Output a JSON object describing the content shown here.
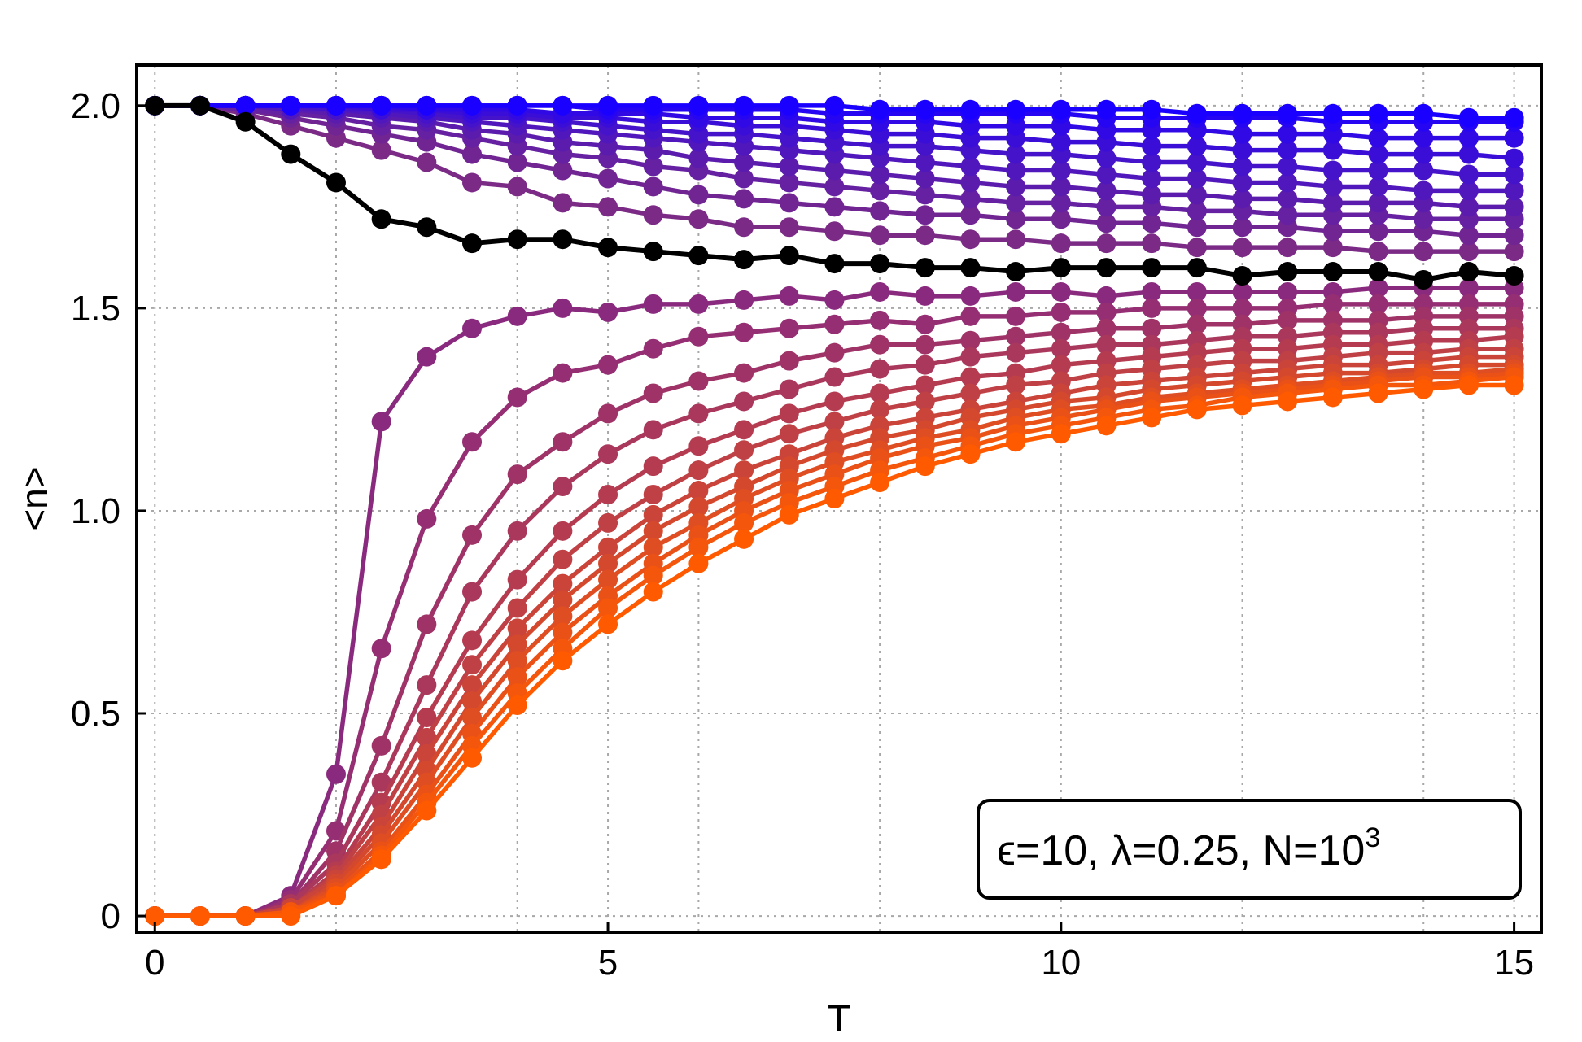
{
  "chart_data": {
    "type": "line",
    "xlabel": "T",
    "ylabel": "<n>",
    "xlim": [
      -0.2,
      15.3
    ],
    "ylim": [
      -0.04,
      2.1
    ],
    "xticks": [
      0,
      5,
      10,
      15
    ],
    "xtick_labels": [
      "0",
      "5",
      "10",
      "15"
    ],
    "yticks": [
      0,
      0.5,
      1.0,
      1.5,
      2.0
    ],
    "ytick_labels": [
      "0",
      "0.5",
      "1.0",
      "1.5",
      "2.0"
    ],
    "grid": true,
    "grid_x": [
      0,
      2,
      4,
      5,
      6,
      8,
      10,
      12,
      14,
      15
    ],
    "grid_y": [
      0,
      0.5,
      1.0,
      1.5,
      2.0
    ],
    "legend_box": {
      "text": "ϵ=10, λ=0.25, N=10",
      "superscript": "3",
      "placement": "bottom-right"
    },
    "colors": {
      "top_family_start": "#7b2a86",
      "top_family_end": "#1a00ff",
      "bottom_family_start": "#8a2a7e",
      "bottom_family_end": "#ff5a00",
      "highlight": "#000000"
    },
    "x": [
      0,
      0.5,
      1,
      1.5,
      2,
      2.5,
      3,
      3.5,
      4,
      4.5,
      5,
      5.5,
      6,
      6.5,
      7,
      7.5,
      8,
      8.5,
      9,
      9.5,
      10,
      10.5,
      11,
      11.5,
      12,
      12.5,
      13,
      13.5,
      14,
      14.5,
      15
    ],
    "series": [
      {
        "family": "top",
        "values": [
          2,
          2,
          1.98,
          1.95,
          1.92,
          1.89,
          1.86,
          1.81,
          1.8,
          1.76,
          1.75,
          1.73,
          1.72,
          1.7,
          1.7,
          1.69,
          1.68,
          1.68,
          1.67,
          1.67,
          1.66,
          1.66,
          1.66,
          1.65,
          1.65,
          1.65,
          1.65,
          1.64,
          1.64,
          1.64,
          1.64
        ]
      },
      {
        "family": "top",
        "values": [
          2,
          2,
          1.99,
          1.97,
          1.95,
          1.93,
          1.91,
          1.88,
          1.86,
          1.84,
          1.82,
          1.8,
          1.78,
          1.77,
          1.76,
          1.75,
          1.74,
          1.73,
          1.73,
          1.72,
          1.72,
          1.71,
          1.71,
          1.7,
          1.7,
          1.7,
          1.69,
          1.69,
          1.69,
          1.68,
          1.68
        ]
      },
      {
        "family": "top",
        "values": [
          2,
          2,
          1.99,
          1.98,
          1.97,
          1.95,
          1.94,
          1.92,
          1.9,
          1.88,
          1.87,
          1.85,
          1.84,
          1.82,
          1.81,
          1.8,
          1.79,
          1.78,
          1.77,
          1.76,
          1.76,
          1.75,
          1.75,
          1.74,
          1.74,
          1.73,
          1.73,
          1.73,
          1.72,
          1.72,
          1.72
        ]
      },
      {
        "family": "top",
        "values": [
          2,
          2,
          2,
          1.99,
          1.98,
          1.97,
          1.96,
          1.94,
          1.93,
          1.91,
          1.9,
          1.89,
          1.87,
          1.86,
          1.85,
          1.84,
          1.83,
          1.82,
          1.81,
          1.8,
          1.8,
          1.79,
          1.78,
          1.78,
          1.77,
          1.77,
          1.76,
          1.76,
          1.76,
          1.75,
          1.75
        ]
      },
      {
        "family": "top",
        "values": [
          2,
          2,
          2,
          1.99,
          1.99,
          1.98,
          1.97,
          1.96,
          1.95,
          1.94,
          1.93,
          1.92,
          1.91,
          1.9,
          1.89,
          1.88,
          1.87,
          1.86,
          1.85,
          1.84,
          1.84,
          1.83,
          1.82,
          1.82,
          1.81,
          1.81,
          1.8,
          1.8,
          1.79,
          1.79,
          1.79
        ]
      },
      {
        "family": "top",
        "values": [
          2,
          2,
          2,
          2,
          1.99,
          1.99,
          1.98,
          1.97,
          1.97,
          1.96,
          1.95,
          1.94,
          1.93,
          1.93,
          1.92,
          1.91,
          1.9,
          1.9,
          1.89,
          1.88,
          1.88,
          1.87,
          1.86,
          1.86,
          1.85,
          1.85,
          1.84,
          1.84,
          1.84,
          1.83,
          1.83
        ]
      },
      {
        "family": "top",
        "values": [
          2,
          2,
          2,
          2,
          2,
          1.99,
          1.99,
          1.98,
          1.98,
          1.97,
          1.97,
          1.96,
          1.96,
          1.95,
          1.95,
          1.94,
          1.93,
          1.93,
          1.92,
          1.92,
          1.91,
          1.91,
          1.9,
          1.9,
          1.89,
          1.89,
          1.89,
          1.88,
          1.88,
          1.88,
          1.87
        ]
      },
      {
        "family": "top",
        "values": [
          2,
          2,
          2,
          2,
          2,
          2,
          1.99,
          1.99,
          1.99,
          1.98,
          1.98,
          1.98,
          1.97,
          1.97,
          1.97,
          1.96,
          1.96,
          1.96,
          1.95,
          1.95,
          1.95,
          1.94,
          1.94,
          1.94,
          1.93,
          1.93,
          1.93,
          1.92,
          1.92,
          1.92,
          1.92
        ]
      },
      {
        "family": "top",
        "values": [
          2,
          2,
          2,
          2,
          2,
          2,
          2,
          2,
          2,
          2,
          1.99,
          1.99,
          1.99,
          1.99,
          1.99,
          1.98,
          1.98,
          1.98,
          1.98,
          1.98,
          1.98,
          1.97,
          1.97,
          1.97,
          1.97,
          1.97,
          1.96,
          1.96,
          1.96,
          1.96,
          1.96
        ]
      },
      {
        "family": "top",
        "values": [
          2,
          2,
          2,
          2,
          2,
          2,
          2,
          2,
          2,
          2,
          2,
          2,
          2,
          2,
          2,
          2,
          1.99,
          1.99,
          1.99,
          1.99,
          1.99,
          1.99,
          1.99,
          1.98,
          1.98,
          1.98,
          1.98,
          1.98,
          1.98,
          1.97,
          1.97
        ]
      },
      {
        "family": "bottom",
        "values": [
          0,
          0,
          0,
          0.05,
          0.35,
          1.22,
          1.38,
          1.45,
          1.48,
          1.5,
          1.49,
          1.51,
          1.51,
          1.52,
          1.53,
          1.52,
          1.54,
          1.53,
          1.53,
          1.54,
          1.54,
          1.53,
          1.54,
          1.54,
          1.54,
          1.54,
          1.54,
          1.55,
          1.55,
          1.55,
          1.55
        ]
      },
      {
        "family": "bottom",
        "values": [
          0,
          0,
          0,
          0.04,
          0.21,
          0.66,
          0.98,
          1.17,
          1.28,
          1.34,
          1.36,
          1.4,
          1.43,
          1.44,
          1.45,
          1.46,
          1.47,
          1.46,
          1.48,
          1.48,
          1.49,
          1.49,
          1.5,
          1.5,
          1.5,
          1.5,
          1.51,
          1.51,
          1.51,
          1.51,
          1.51
        ]
      },
      {
        "family": "bottom",
        "values": [
          0,
          0,
          0,
          0.03,
          0.16,
          0.42,
          0.72,
          0.94,
          1.09,
          1.17,
          1.24,
          1.29,
          1.32,
          1.34,
          1.37,
          1.39,
          1.41,
          1.41,
          1.42,
          1.43,
          1.44,
          1.45,
          1.45,
          1.46,
          1.46,
          1.47,
          1.47,
          1.47,
          1.48,
          1.48,
          1.48
        ]
      },
      {
        "family": "bottom",
        "values": [
          0,
          0,
          0,
          0.03,
          0.13,
          0.33,
          0.57,
          0.8,
          0.95,
          1.06,
          1.14,
          1.2,
          1.24,
          1.27,
          1.3,
          1.33,
          1.35,
          1.36,
          1.38,
          1.39,
          1.4,
          1.41,
          1.41,
          1.42,
          1.43,
          1.43,
          1.44,
          1.44,
          1.45,
          1.45,
          1.45
        ]
      },
      {
        "family": "bottom",
        "values": [
          0,
          0,
          0,
          0.02,
          0.11,
          0.28,
          0.49,
          0.68,
          0.83,
          0.95,
          1.04,
          1.11,
          1.16,
          1.2,
          1.24,
          1.27,
          1.29,
          1.31,
          1.33,
          1.34,
          1.36,
          1.37,
          1.38,
          1.39,
          1.4,
          1.4,
          1.41,
          1.41,
          1.42,
          1.42,
          1.43
        ]
      },
      {
        "family": "bottom",
        "values": [
          0,
          0,
          0,
          0.02,
          0.1,
          0.25,
          0.44,
          0.62,
          0.76,
          0.88,
          0.97,
          1.04,
          1.1,
          1.15,
          1.19,
          1.22,
          1.25,
          1.27,
          1.29,
          1.31,
          1.32,
          1.34,
          1.35,
          1.36,
          1.37,
          1.37,
          1.38,
          1.39,
          1.39,
          1.4,
          1.4
        ]
      },
      {
        "family": "bottom",
        "values": [
          0,
          0,
          0,
          0.02,
          0.09,
          0.22,
          0.4,
          0.57,
          0.71,
          0.82,
          0.91,
          0.99,
          1.05,
          1.1,
          1.14,
          1.18,
          1.21,
          1.23,
          1.25,
          1.27,
          1.29,
          1.31,
          1.32,
          1.33,
          1.34,
          1.35,
          1.36,
          1.36,
          1.37,
          1.38,
          1.38
        ]
      },
      {
        "family": "bottom",
        "values": [
          0,
          0,
          0,
          0.01,
          0.08,
          0.2,
          0.36,
          0.53,
          0.67,
          0.78,
          0.87,
          0.95,
          1.01,
          1.06,
          1.11,
          1.15,
          1.18,
          1.2,
          1.23,
          1.25,
          1.27,
          1.28,
          1.3,
          1.31,
          1.32,
          1.33,
          1.34,
          1.34,
          1.35,
          1.36,
          1.36
        ]
      },
      {
        "family": "bottom",
        "values": [
          0,
          0,
          0,
          0.01,
          0.07,
          0.18,
          0.33,
          0.49,
          0.63,
          0.74,
          0.83,
          0.91,
          0.97,
          1.03,
          1.08,
          1.12,
          1.15,
          1.18,
          1.2,
          1.23,
          1.25,
          1.26,
          1.28,
          1.29,
          1.3,
          1.31,
          1.32,
          1.33,
          1.34,
          1.34,
          1.35
        ]
      },
      {
        "family": "bottom",
        "values": [
          0,
          0,
          0,
          0.01,
          0.06,
          0.16,
          0.3,
          0.45,
          0.59,
          0.7,
          0.79,
          0.87,
          0.94,
          1.0,
          1.05,
          1.09,
          1.13,
          1.16,
          1.18,
          1.21,
          1.23,
          1.25,
          1.27,
          1.28,
          1.29,
          1.3,
          1.31,
          1.32,
          1.33,
          1.33,
          1.34
        ]
      },
      {
        "family": "bottom",
        "values": [
          0,
          0,
          0,
          0.01,
          0.05,
          0.15,
          0.28,
          0.42,
          0.55,
          0.66,
          0.76,
          0.84,
          0.91,
          0.97,
          1.02,
          1.06,
          1.1,
          1.13,
          1.16,
          1.19,
          1.21,
          1.23,
          1.25,
          1.26,
          1.28,
          1.29,
          1.3,
          1.31,
          1.31,
          1.32,
          1.33
        ]
      },
      {
        "family": "bottom",
        "values": [
          0,
          0,
          0,
          0.0,
          0.05,
          0.14,
          0.26,
          0.39,
          0.52,
          0.63,
          0.72,
          0.8,
          0.87,
          0.93,
          0.99,
          1.03,
          1.07,
          1.11,
          1.14,
          1.17,
          1.19,
          1.21,
          1.23,
          1.25,
          1.26,
          1.27,
          1.28,
          1.29,
          1.3,
          1.31,
          1.31
        ]
      },
      {
        "family": "highlight",
        "values": [
          2.0,
          2.0,
          1.96,
          1.88,
          1.81,
          1.72,
          1.7,
          1.66,
          1.67,
          1.67,
          1.65,
          1.64,
          1.63,
          1.62,
          1.63,
          1.61,
          1.61,
          1.6,
          1.6,
          1.59,
          1.6,
          1.6,
          1.6,
          1.6,
          1.58,
          1.59,
          1.59,
          1.59,
          1.57,
          1.59,
          1.58
        ]
      }
    ]
  }
}
